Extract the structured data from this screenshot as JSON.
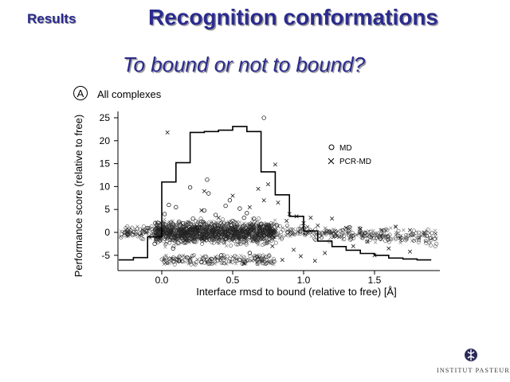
{
  "header": {
    "section": "Results",
    "title": "Recognition conformations",
    "subtitle": "To bound or not to bound?"
  },
  "logo": {
    "text": "INSTITUT PASTEUR",
    "icon": "institut-pasteur-logo-icon"
  },
  "chart_data": {
    "type": "scatter",
    "panel_label": "A",
    "title": "All complexes",
    "xlabel": "Interface rmsd to bound (relative to free) [Å]",
    "ylabel": "Performance score (relative to free)",
    "xlim": [
      -0.32,
      1.95
    ],
    "ylim": [
      -7.5,
      27
    ],
    "xticks": [
      0.0,
      0.5,
      1.0,
      1.5
    ],
    "xtick_labels": [
      "0.0",
      "0.5",
      "1.0",
      "1.5"
    ],
    "yticks": [
      -5,
      0,
      5,
      10,
      15,
      20,
      25
    ],
    "ytick_labels": [
      "-5",
      "0",
      "5",
      "10",
      "15",
      "20",
      "25"
    ],
    "legend_position": "top-right",
    "series": [
      {
        "name": "MD",
        "marker": "circle",
        "points": [
          [
            0.72,
            25.0
          ],
          [
            0.32,
            11.5
          ],
          [
            0.2,
            9.8
          ],
          [
            0.05,
            6.0
          ],
          [
            0.1,
            5.5
          ],
          [
            0.3,
            4.8
          ],
          [
            0.55,
            5.2
          ],
          [
            0.22,
            3.0
          ],
          [
            0.38,
            3.8
          ],
          [
            0.45,
            5.8
          ],
          [
            0.6,
            4.2
          ],
          [
            0.5,
            2.5
          ],
          [
            0.15,
            2.0
          ],
          [
            0.4,
            1.5
          ],
          [
            0.25,
            1.0
          ],
          [
            0.65,
            3.0
          ],
          [
            0.7,
            1.8
          ],
          [
            0.08,
            -3.5
          ],
          [
            0.18,
            -5.5
          ],
          [
            0.35,
            -5.8
          ],
          [
            0.28,
            -6.5
          ],
          [
            0.42,
            -5.0
          ],
          [
            0.55,
            -6.0
          ],
          [
            0.12,
            -6.2
          ],
          [
            0.62,
            -4.5
          ],
          [
            -0.05,
            -2.5
          ],
          [
            0.02,
            4.0
          ],
          [
            0.48,
            7.0
          ],
          [
            0.33,
            8.5
          ],
          [
            0.58,
            3.2
          ]
        ]
      },
      {
        "name": "PCR-MD",
        "marker": "cross",
        "points": [
          [
            0.04,
            21.8
          ],
          [
            0.8,
            14.8
          ],
          [
            0.75,
            10.5
          ],
          [
            0.68,
            9.5
          ],
          [
            0.82,
            6.5
          ],
          [
            0.9,
            4.0
          ],
          [
            0.95,
            3.5
          ],
          [
            1.05,
            3.2
          ],
          [
            1.2,
            3.0
          ],
          [
            0.72,
            7.0
          ],
          [
            0.88,
            2.5
          ],
          [
            1.0,
            2.0
          ],
          [
            1.1,
            1.5
          ],
          [
            1.3,
            1.0
          ],
          [
            1.4,
            0.8
          ],
          [
            1.55,
            0.5
          ],
          [
            1.65,
            1.2
          ],
          [
            1.75,
            0.5
          ],
          [
            1.85,
            0.0
          ],
          [
            1.25,
            -1.0
          ],
          [
            1.45,
            -2.0
          ],
          [
            1.6,
            -3.5
          ],
          [
            1.75,
            -4.2
          ],
          [
            1.5,
            -5.0
          ],
          [
            1.15,
            -4.5
          ],
          [
            0.98,
            -5.2
          ],
          [
            0.85,
            -6.0
          ],
          [
            0.58,
            -6.8
          ],
          [
            0.3,
            9.0
          ],
          [
            0.5,
            8.0
          ],
          [
            0.28,
            4.8
          ],
          [
            0.62,
            5.5
          ],
          [
            0.4,
            3.2
          ],
          [
            1.35,
            -3.0
          ],
          [
            1.68,
            -1.2
          ],
          [
            0.93,
            -3.8
          ],
          [
            1.08,
            -6.2
          ],
          [
            0.78,
            -3.0
          ]
        ]
      }
    ],
    "step_series": {
      "name": "",
      "edges": [
        -0.35,
        -0.2,
        -0.1,
        0.0,
        0.1,
        0.2,
        0.3,
        0.4,
        0.5,
        0.6,
        0.7,
        0.8,
        0.9,
        1.0,
        1.1,
        1.2,
        1.3,
        1.4,
        1.5,
        1.6,
        1.7,
        1.8,
        1.9
      ],
      "values": [
        -6.0,
        -5.5,
        -1.0,
        11.0,
        15.2,
        21.8,
        22.0,
        22.3,
        23.1,
        22.0,
        13.2,
        8.2,
        3.5,
        0.3,
        -1.9,
        -3.1,
        -3.9,
        -4.6,
        -5.0,
        -5.6,
        -5.8,
        -6.0
      ]
    },
    "band": {
      "description_free": false,
      "x_range": [
        -0.3,
        1.95
      ],
      "y_center": 0,
      "y_spread": 3.5,
      "count": 2200
    }
  }
}
